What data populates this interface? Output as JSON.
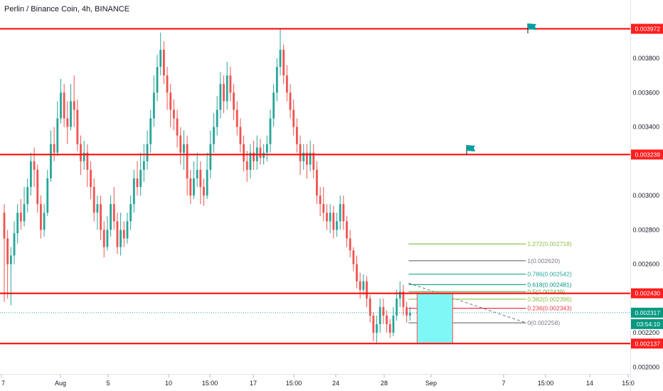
{
  "title": "Perlin / Binance Coin, 4h, BINANCE",
  "chart_data": {
    "type": "candlestick",
    "y_range": [
      0.00196,
      0.00414
    ],
    "y_ticks": [
      "0.003800",
      "0.003600",
      "0.003400",
      "0.003000",
      "0.002800",
      "0.002600",
      "0.002200",
      "0.002000"
    ],
    "x_ticks": [
      "7",
      "Aug",
      "5",
      "10",
      "15:00",
      "17",
      "15:00",
      "24",
      "28",
      "Sep",
      "7",
      "15:00",
      "14",
      "15:0"
    ],
    "candle_fraction": 0.655,
    "candles": [
      [
        0.0029,
        0.00275,
        0.00295,
        0.00238
      ],
      [
        0.00275,
        0.0026,
        0.0028,
        0.0024
      ],
      [
        0.0026,
        0.00265,
        0.0027,
        0.00236
      ],
      [
        0.00265,
        0.00278,
        0.00285,
        0.0026
      ],
      [
        0.00278,
        0.0029,
        0.00295,
        0.00272
      ],
      [
        0.0029,
        0.00285,
        0.00298,
        0.0028
      ],
      [
        0.00285,
        0.00295,
        0.00305,
        0.00282
      ],
      [
        0.00295,
        0.00305,
        0.0031,
        0.0029
      ],
      [
        0.00305,
        0.0032,
        0.00325,
        0.003
      ],
      [
        0.0032,
        0.00315,
        0.00328,
        0.00305
      ],
      [
        0.00315,
        0.00295,
        0.00318,
        0.0029
      ],
      [
        0.00295,
        0.0028,
        0.003,
        0.00275
      ],
      [
        0.0028,
        0.0029,
        0.00295,
        0.00276
      ],
      [
        0.0029,
        0.0031,
        0.00315,
        0.00288
      ],
      [
        0.0031,
        0.0033,
        0.00338,
        0.00308
      ],
      [
        0.0033,
        0.00325,
        0.0034,
        0.0032
      ],
      [
        0.00325,
        0.00345,
        0.00355,
        0.00323
      ],
      [
        0.00345,
        0.0036,
        0.00368,
        0.00342
      ],
      [
        0.0036,
        0.00345,
        0.00365,
        0.0034
      ],
      [
        0.00345,
        0.0034,
        0.00355,
        0.0033
      ],
      [
        0.0034,
        0.00355,
        0.00365,
        0.00338
      ],
      [
        0.00355,
        0.0035,
        0.0037,
        0.0034
      ],
      [
        0.0035,
        0.0033,
        0.00356,
        0.00326
      ],
      [
        0.0033,
        0.0032,
        0.00335,
        0.00312
      ],
      [
        0.0032,
        0.00325,
        0.00332,
        0.00315
      ],
      [
        0.00325,
        0.00315,
        0.0033,
        0.00305
      ],
      [
        0.00315,
        0.00305,
        0.0032,
        0.00298
      ],
      [
        0.00305,
        0.0029,
        0.0031,
        0.00285
      ],
      [
        0.0029,
        0.00295,
        0.003,
        0.0028
      ],
      [
        0.00295,
        0.0028,
        0.003,
        0.00274
      ],
      [
        0.0028,
        0.0027,
        0.00285,
        0.00264
      ],
      [
        0.0027,
        0.0028,
        0.00288,
        0.00268
      ],
      [
        0.0028,
        0.00295,
        0.003,
        0.00276
      ],
      [
        0.00295,
        0.00285,
        0.00305,
        0.0028
      ],
      [
        0.00285,
        0.0027,
        0.0029,
        0.00266
      ],
      [
        0.0027,
        0.0028,
        0.0029,
        0.00265
      ],
      [
        0.0028,
        0.00275,
        0.00285,
        0.0027
      ],
      [
        0.00275,
        0.00285,
        0.0029,
        0.00272
      ],
      [
        0.00285,
        0.00295,
        0.003,
        0.0028
      ],
      [
        0.00295,
        0.0031,
        0.00315,
        0.0029
      ],
      [
        0.0031,
        0.00305,
        0.0032,
        0.003
      ],
      [
        0.00305,
        0.00315,
        0.00325,
        0.003
      ],
      [
        0.00315,
        0.0032,
        0.0033,
        0.00308
      ],
      [
        0.0032,
        0.0033,
        0.00338,
        0.00315
      ],
      [
        0.0033,
        0.00345,
        0.0035,
        0.00325
      ],
      [
        0.00345,
        0.0036,
        0.0037,
        0.0034
      ],
      [
        0.0036,
        0.00375,
        0.00382,
        0.00355
      ],
      [
        0.00375,
        0.00385,
        0.00395,
        0.0037
      ],
      [
        0.00385,
        0.0037,
        0.0039,
        0.00365
      ],
      [
        0.0037,
        0.0036,
        0.00375,
        0.0035
      ],
      [
        0.0036,
        0.0035,
        0.00365,
        0.0034
      ],
      [
        0.0035,
        0.00345,
        0.00356,
        0.00338
      ],
      [
        0.00345,
        0.00335,
        0.0035,
        0.00328
      ],
      [
        0.00335,
        0.00325,
        0.0034,
        0.00318
      ],
      [
        0.00325,
        0.0033,
        0.00338,
        0.00315
      ],
      [
        0.0033,
        0.0031,
        0.00335,
        0.003
      ],
      [
        0.0031,
        0.003,
        0.00315,
        0.00295
      ],
      [
        0.003,
        0.0031,
        0.0032,
        0.00298
      ],
      [
        0.0031,
        0.00315,
        0.00325,
        0.00305
      ],
      [
        0.00315,
        0.00305,
        0.0032,
        0.00295
      ],
      [
        0.00305,
        0.003,
        0.0031,
        0.00294
      ],
      [
        0.003,
        0.00315,
        0.00325,
        0.00298
      ],
      [
        0.00315,
        0.0033,
        0.00338,
        0.0031
      ],
      [
        0.0033,
        0.0034,
        0.00348,
        0.00325
      ],
      [
        0.0034,
        0.0035,
        0.00358,
        0.00335
      ],
      [
        0.0035,
        0.00365,
        0.00372,
        0.00345
      ],
      [
        0.00365,
        0.00355,
        0.0037,
        0.00348
      ],
      [
        0.00355,
        0.0037,
        0.00378,
        0.0035
      ],
      [
        0.0037,
        0.0036,
        0.00375,
        0.00355
      ],
      [
        0.0036,
        0.0035,
        0.00365,
        0.00344
      ],
      [
        0.0035,
        0.0034,
        0.00355,
        0.00335
      ],
      [
        0.0034,
        0.0033,
        0.00345,
        0.00325
      ],
      [
        0.0033,
        0.0032,
        0.00335,
        0.00314
      ],
      [
        0.0032,
        0.00315,
        0.00326,
        0.00308
      ],
      [
        0.00315,
        0.00325,
        0.0033,
        0.0031
      ],
      [
        0.00325,
        0.0032,
        0.00332,
        0.00315
      ],
      [
        0.0032,
        0.00328,
        0.00335,
        0.00315
      ],
      [
        0.00328,
        0.00322,
        0.00333,
        0.00318
      ],
      [
        0.00322,
        0.00325,
        0.0033,
        0.00318
      ],
      [
        0.00325,
        0.0033,
        0.00335,
        0.0032
      ],
      [
        0.0033,
        0.00345,
        0.0035,
        0.00325
      ],
      [
        0.00345,
        0.0036,
        0.00365,
        0.0034
      ],
      [
        0.0036,
        0.00375,
        0.0038,
        0.00355
      ],
      [
        0.00375,
        0.00385,
        0.003972,
        0.0037
      ],
      [
        0.00385,
        0.0037,
        0.00388,
        0.00365
      ],
      [
        0.0037,
        0.0036,
        0.00376,
        0.00355
      ],
      [
        0.0036,
        0.0035,
        0.00365,
        0.00345
      ],
      [
        0.0035,
        0.0034,
        0.00356,
        0.00335
      ],
      [
        0.0034,
        0.0033,
        0.00345,
        0.00325
      ],
      [
        0.0033,
        0.0032,
        0.00335,
        0.00312
      ],
      [
        0.0032,
        0.00325,
        0.0033,
        0.00315
      ],
      [
        0.00325,
        0.00318,
        0.0033,
        0.0031
      ],
      [
        0.00318,
        0.00325,
        0.00332,
        0.00314
      ],
      [
        0.00325,
        0.00315,
        0.0033,
        0.0031
      ],
      [
        0.00315,
        0.003,
        0.0032,
        0.00295
      ],
      [
        0.003,
        0.00295,
        0.00305,
        0.00288
      ],
      [
        0.00295,
        0.0029,
        0.00305,
        0.00285
      ],
      [
        0.0029,
        0.00285,
        0.00295,
        0.0028
      ],
      [
        0.00285,
        0.0029,
        0.00295,
        0.00278
      ],
      [
        0.0029,
        0.0028,
        0.00294,
        0.00275
      ],
      [
        0.0028,
        0.00285,
        0.0029,
        0.00276
      ],
      [
        0.00285,
        0.00295,
        0.003,
        0.0028
      ],
      [
        0.00295,
        0.00285,
        0.003,
        0.0028
      ],
      [
        0.00285,
        0.00275,
        0.00288,
        0.0027
      ],
      [
        0.00275,
        0.00268,
        0.0028,
        0.00264
      ],
      [
        0.00268,
        0.0026,
        0.0027,
        0.00256
      ],
      [
        0.0026,
        0.0025,
        0.00265,
        0.00246
      ],
      [
        0.0025,
        0.00245,
        0.00255,
        0.0024
      ],
      [
        0.00245,
        0.0025,
        0.00254,
        0.00242
      ],
      [
        0.0025,
        0.0024,
        0.00253,
        0.00235
      ],
      [
        0.0024,
        0.0023,
        0.00242,
        0.00226
      ],
      [
        0.0023,
        0.0022,
        0.00232,
        0.00215
      ],
      [
        0.0022,
        0.00225,
        0.0023,
        0.002137
      ],
      [
        0.00225,
        0.00235,
        0.0024,
        0.0022
      ],
      [
        0.00235,
        0.0023,
        0.0024,
        0.00225
      ],
      [
        0.0023,
        0.00225,
        0.00233,
        0.0022
      ],
      [
        0.00225,
        0.0022,
        0.00228,
        0.00217
      ],
      [
        0.0022,
        0.0023,
        0.00235,
        0.00218
      ],
      [
        0.0023,
        0.0024,
        0.00245,
        0.00227
      ],
      [
        0.0024,
        0.00244,
        0.0025,
        0.00235
      ],
      [
        0.00244,
        0.00235,
        0.00248,
        0.0023
      ],
      [
        0.00235,
        0.0023,
        0.00238,
        0.00226
      ],
      [
        0.0023,
        0.002317,
        0.00235,
        0.00227
      ]
    ],
    "horizontal_levels": [
      {
        "label": "0.003972",
        "value": 0.003972
      },
      {
        "label": "0.003239",
        "value": 0.003239
      },
      {
        "label": "0.002430",
        "value": 0.00243
      },
      {
        "label": "0.002137",
        "value": 0.002137
      }
    ],
    "current_price": {
      "label": "0.002317",
      "value": 0.002317
    },
    "countdown": "03:54:10",
    "fibonacci": [
      {
        "label": "1.272(0.002718)",
        "value": 0.002718,
        "color": "#8bc34a"
      },
      {
        "label": "1(0.002620)",
        "value": 0.00262,
        "color": "#787b86"
      },
      {
        "label": "0.786(0.002542)",
        "value": 0.002542,
        "color": "#26a69a"
      },
      {
        "label": "0.618(0.002481)",
        "value": 0.002481,
        "color": "#089981"
      },
      {
        "label": "0.5(0.002439)",
        "value": 0.002439,
        "color": "#4caf50"
      },
      {
        "label": "0.382(0.002396)",
        "value": 0.002396,
        "color": "#8bc34a"
      },
      {
        "label": "0.236(0.002343)",
        "value": 0.002343,
        "color": "#f23645"
      },
      {
        "label": "0(0.002258)",
        "value": 0.002258,
        "color": "#787b86"
      }
    ],
    "colors": {
      "up": "#26a69a",
      "down": "#ef5350",
      "level_line": "#ff0000",
      "flag": "#00a0a0",
      "box_fill": "#7ff7f7"
    }
  }
}
